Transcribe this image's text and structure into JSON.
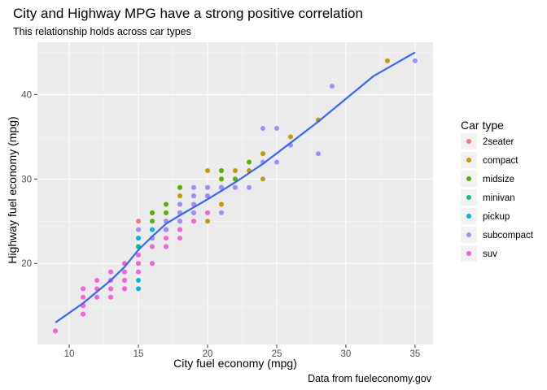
{
  "chart_data": {
    "type": "scatter",
    "title": "City and Highway MPG have a strong positive correlation",
    "subtitle": "This relationship holds across car types",
    "xlabel": "City fuel economy (mpg)",
    "ylabel": "Highway fuel economy (mpg)",
    "caption": "Data from fueleconomy.gov",
    "xlim": [
      7.7,
      36.3
    ],
    "ylim": [
      10.4,
      46.2
    ],
    "x_ticks": [
      10,
      15,
      20,
      25,
      30,
      35
    ],
    "y_ticks": [
      20,
      30,
      40
    ],
    "grid": true,
    "legend_position": "right",
    "legend_title": "Car type",
    "series": [
      {
        "name": "2seater",
        "color": "#F8766D",
        "points": [
          [
            15,
            25
          ],
          [
            15,
            24
          ],
          [
            15,
            23
          ],
          [
            16,
            26
          ],
          [
            15,
            22
          ]
        ]
      },
      {
        "name": "compact",
        "color": "#C49A00",
        "points": [
          [
            18,
            29
          ],
          [
            21,
            29
          ],
          [
            20,
            31
          ],
          [
            21,
            30
          ],
          [
            16,
            26
          ],
          [
            18,
            26
          ],
          [
            19,
            27
          ],
          [
            22,
            29
          ],
          [
            19,
            26
          ],
          [
            21,
            27
          ],
          [
            20,
            25
          ],
          [
            22,
            31
          ],
          [
            24,
            33
          ],
          [
            23,
            31
          ],
          [
            33,
            44
          ],
          [
            26,
            35
          ],
          [
            28,
            37
          ],
          [
            24,
            30
          ],
          [
            21,
            31
          ],
          [
            19,
            28
          ],
          [
            17,
            24
          ],
          [
            17,
            26
          ],
          [
            19,
            25
          ],
          [
            20,
            28
          ],
          [
            22,
            30
          ],
          [
            18,
            28
          ]
        ]
      },
      {
        "name": "midsize",
        "color": "#53B400",
        "points": [
          [
            16,
            26
          ],
          [
            17,
            27
          ],
          [
            18,
            29
          ],
          [
            19,
            28
          ],
          [
            21,
            29
          ],
          [
            20,
            28
          ],
          [
            21,
            30
          ],
          [
            18,
            26
          ],
          [
            18,
            27
          ],
          [
            19,
            26
          ],
          [
            17,
            25
          ],
          [
            16,
            23
          ],
          [
            23,
            32
          ],
          [
            22,
            30
          ],
          [
            16,
            25
          ],
          [
            20,
            29
          ],
          [
            21,
            31
          ],
          [
            18,
            25
          ],
          [
            17,
            26
          ]
        ]
      },
      {
        "name": "minivan",
        "color": "#00C094",
        "points": [
          [
            16,
            22
          ],
          [
            16,
            23
          ],
          [
            17,
            24
          ],
          [
            15,
            22
          ],
          [
            11,
            17
          ],
          [
            18,
            24
          ],
          [
            16,
            24
          ]
        ]
      },
      {
        "name": "pickup",
        "color": "#00B6EB",
        "points": [
          [
            15,
            20
          ],
          [
            14,
            19
          ],
          [
            13,
            16
          ],
          [
            15,
            19
          ],
          [
            15,
            17
          ],
          [
            14,
            18
          ],
          [
            13,
            17
          ],
          [
            12,
            16
          ],
          [
            11,
            15
          ],
          [
            9,
            12
          ],
          [
            16,
            20
          ],
          [
            17,
            22
          ],
          [
            15,
            18
          ],
          [
            14,
            17
          ],
          [
            13,
            18
          ],
          [
            11,
            14
          ],
          [
            16,
            24
          ],
          [
            15,
            23
          ]
        ]
      },
      {
        "name": "subcompact",
        "color": "#A58AFF",
        "points": [
          [
            28,
            33
          ],
          [
            24,
            32
          ],
          [
            25,
            32
          ],
          [
            23,
            29
          ],
          [
            24,
            36
          ],
          [
            25,
            36
          ],
          [
            26,
            34
          ],
          [
            29,
            41
          ],
          [
            35,
            44
          ],
          [
            20,
            29
          ],
          [
            20,
            26
          ],
          [
            21,
            26
          ],
          [
            19,
            27
          ],
          [
            19,
            29
          ],
          [
            18,
            26
          ],
          [
            18,
            25
          ],
          [
            17,
            25
          ],
          [
            15,
            24
          ],
          [
            19,
            28
          ],
          [
            22,
            29
          ],
          [
            20,
            28
          ],
          [
            21,
            29
          ],
          [
            16,
            23
          ],
          [
            17,
            24
          ],
          [
            18,
            27
          ],
          [
            19,
            26
          ]
        ]
      },
      {
        "name": "suv",
        "color": "#FB61D7",
        "points": [
          [
            14,
            17
          ],
          [
            11,
            15
          ],
          [
            14,
            20
          ],
          [
            13,
            19
          ],
          [
            12,
            17
          ],
          [
            11,
            16
          ],
          [
            9,
            12
          ],
          [
            14,
            18
          ],
          [
            15,
            21
          ],
          [
            12,
            16
          ],
          [
            13,
            17
          ],
          [
            11,
            14
          ],
          [
            17,
            22
          ],
          [
            15,
            20
          ],
          [
            16,
            20
          ],
          [
            13,
            18
          ],
          [
            12,
            18
          ],
          [
            11,
            17
          ],
          [
            14,
            19
          ],
          [
            20,
            26
          ],
          [
            19,
            25
          ],
          [
            18,
            24
          ],
          [
            18,
            23
          ],
          [
            17,
            23
          ],
          [
            16,
            22
          ],
          [
            15,
            19
          ],
          [
            13,
            16
          ]
        ]
      }
    ],
    "trend": {
      "color": "#3366FF",
      "points": [
        [
          9,
          13.0
        ],
        [
          11,
          15.3
        ],
        [
          13,
          18.0
        ],
        [
          14,
          19.6
        ],
        [
          15,
          21.6
        ],
        [
          16,
          23.2
        ],
        [
          17,
          24.7
        ],
        [
          18,
          25.7
        ],
        [
          20,
          27.6
        ],
        [
          22,
          29.6
        ],
        [
          24,
          31.8
        ],
        [
          26,
          34.3
        ],
        [
          28,
          36.8
        ],
        [
          30,
          39.5
        ],
        [
          32,
          42.2
        ],
        [
          35,
          45.0
        ]
      ]
    }
  }
}
